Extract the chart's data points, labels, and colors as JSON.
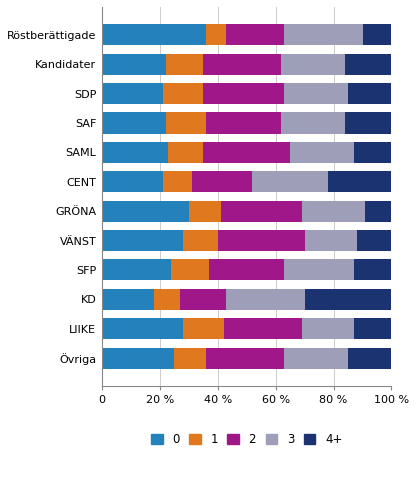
{
  "categories": [
    "Röstberättigade",
    "Kandidater",
    "SDP",
    "SAF",
    "SAML",
    "CENT",
    "GRÖNA",
    "VÄNST",
    "SFP",
    "KD",
    "LIIKE",
    "Övriga"
  ],
  "segments": {
    "0": [
      36,
      22,
      21,
      22,
      23,
      21,
      30,
      28,
      24,
      18,
      28,
      25
    ],
    "1": [
      7,
      13,
      14,
      14,
      12,
      10,
      11,
      12,
      13,
      9,
      14,
      11
    ],
    "2": [
      20,
      27,
      28,
      26,
      30,
      21,
      28,
      30,
      26,
      16,
      27,
      27
    ],
    "3": [
      27,
      22,
      22,
      22,
      22,
      26,
      22,
      18,
      24,
      27,
      18,
      22
    ],
    "4+": [
      10,
      16,
      15,
      16,
      13,
      22,
      9,
      12,
      13,
      30,
      13,
      15
    ]
  },
  "colors": {
    "0": "#2481BB",
    "1": "#E07820",
    "2": "#A0178A",
    "3": "#9E9EB8",
    "4+": "#1B3471"
  },
  "legend_labels": [
    "0",
    "1",
    "2",
    "3",
    "4+"
  ],
  "xlim": [
    0,
    100
  ],
  "xticks": [
    0,
    20,
    40,
    60,
    80,
    100
  ],
  "xticklabels": [
    "0",
    "20 %",
    "40 %",
    "60 %",
    "80 %",
    "100 %"
  ],
  "background_color": "#ffffff",
  "grid_color": "#cccccc",
  "bar_height": 0.72,
  "ytick_fontsize": 8.0,
  "xtick_fontsize": 8.0,
  "legend_fontsize": 8.5
}
